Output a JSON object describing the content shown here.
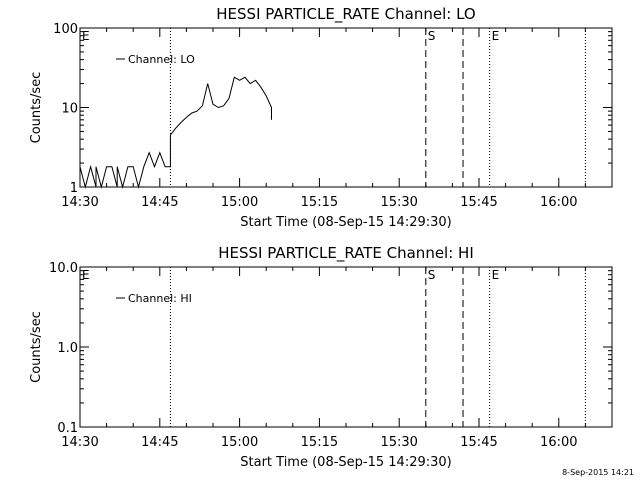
{
  "timestamp": "8-Sep-2015 14:21",
  "chart_data": [
    {
      "type": "line",
      "title": "HESSI PARTICLE_RATE Channel: LO",
      "xlabel": "Start Time (08-Sep-15 14:29:30)",
      "ylabel": "Counts/sec",
      "yscale": "log",
      "xlim": [
        "14:30",
        "16:10"
      ],
      "ylim": [
        1,
        100
      ],
      "x_ticks": [
        "14:30",
        "14:45",
        "15:00",
        "15:15",
        "15:30",
        "15:45",
        "16:00"
      ],
      "y_ticks": [
        "1",
        "10",
        "100"
      ],
      "legend": {
        "label": "Channel: LO",
        "position": "top-left"
      },
      "grid": false,
      "markers": [
        {
          "label": "E",
          "time": "14:30",
          "style": "none"
        },
        {
          "label": "",
          "time": "14:47",
          "style": "dotted"
        },
        {
          "label": "S",
          "time": "15:35",
          "style": "dashed"
        },
        {
          "label": "",
          "time": "15:42",
          "style": "dashed"
        },
        {
          "label": "E",
          "time": "15:47",
          "style": "dotted"
        },
        {
          "label": "",
          "time": "16:05",
          "style": "dotted"
        }
      ],
      "series": [
        {
          "name": "Channel: LO",
          "points": [
            [
              "14:30",
              1.8
            ],
            [
              "14:31",
              1.0
            ],
            [
              "14:32",
              1.8
            ],
            [
              "14:33",
              1.0
            ],
            [
              "14:33",
              1.8
            ],
            [
              "14:34",
              1.0
            ],
            [
              "14:35",
              1.8
            ],
            [
              "14:36",
              1.8
            ],
            [
              "14:37",
              1.0
            ],
            [
              "14:37",
              1.8
            ],
            [
              "14:38",
              1.0
            ],
            [
              "14:39",
              1.8
            ],
            [
              "14:40",
              1.8
            ],
            [
              "14:41",
              1.0
            ],
            [
              "14:42",
              1.8
            ],
            [
              "14:43",
              2.7
            ],
            [
              "14:44",
              1.8
            ],
            [
              "14:45",
              2.7
            ],
            [
              "14:46",
              1.8
            ],
            [
              "14:47",
              1.8
            ],
            [
              "14:47",
              4.5
            ],
            [
              "14:48",
              5.5
            ],
            [
              "14:49",
              6.5
            ],
            [
              "14:50",
              7.5
            ],
            [
              "14:51",
              8.5
            ],
            [
              "14:52",
              9.0
            ],
            [
              "14:53",
              10.5
            ],
            [
              "14:54",
              20.0
            ],
            [
              "14:55",
              11.0
            ],
            [
              "14:56",
              10.0
            ],
            [
              "14:57",
              10.5
            ],
            [
              "14:58",
              13.0
            ],
            [
              "14:59",
              24.0
            ],
            [
              "15:00",
              22.0
            ],
            [
              "15:01",
              24.0
            ],
            [
              "15:02",
              20.0
            ],
            [
              "15:03",
              22.0
            ],
            [
              "15:04",
              18.0
            ],
            [
              "15:05",
              14.0
            ],
            [
              "15:06",
              10.0
            ],
            [
              "15:06",
              7.0
            ]
          ]
        }
      ]
    },
    {
      "type": "line",
      "title": "HESSI PARTICLE_RATE Channel: HI",
      "xlabel": "Start Time (08-Sep-15 14:29:30)",
      "ylabel": "Counts/sec",
      "yscale": "log",
      "xlim": [
        "14:30",
        "16:10"
      ],
      "ylim": [
        0.1,
        10.0
      ],
      "x_ticks": [
        "14:30",
        "14:45",
        "15:00",
        "15:15",
        "15:30",
        "15:45",
        "16:00"
      ],
      "y_ticks": [
        "0.1",
        "1.0",
        "10.0"
      ],
      "legend": {
        "label": "Channel: HI",
        "position": "top-left"
      },
      "grid": false,
      "markers": [
        {
          "label": "E",
          "time": "14:30",
          "style": "none"
        },
        {
          "label": "",
          "time": "14:47",
          "style": "dotted"
        },
        {
          "label": "S",
          "time": "15:35",
          "style": "dashed"
        },
        {
          "label": "",
          "time": "15:42",
          "style": "dashed"
        },
        {
          "label": "E",
          "time": "15:47",
          "style": "dotted"
        },
        {
          "label": "",
          "time": "16:05",
          "style": "dotted"
        }
      ],
      "series": [
        {
          "name": "Channel: HI",
          "points": []
        }
      ]
    }
  ]
}
